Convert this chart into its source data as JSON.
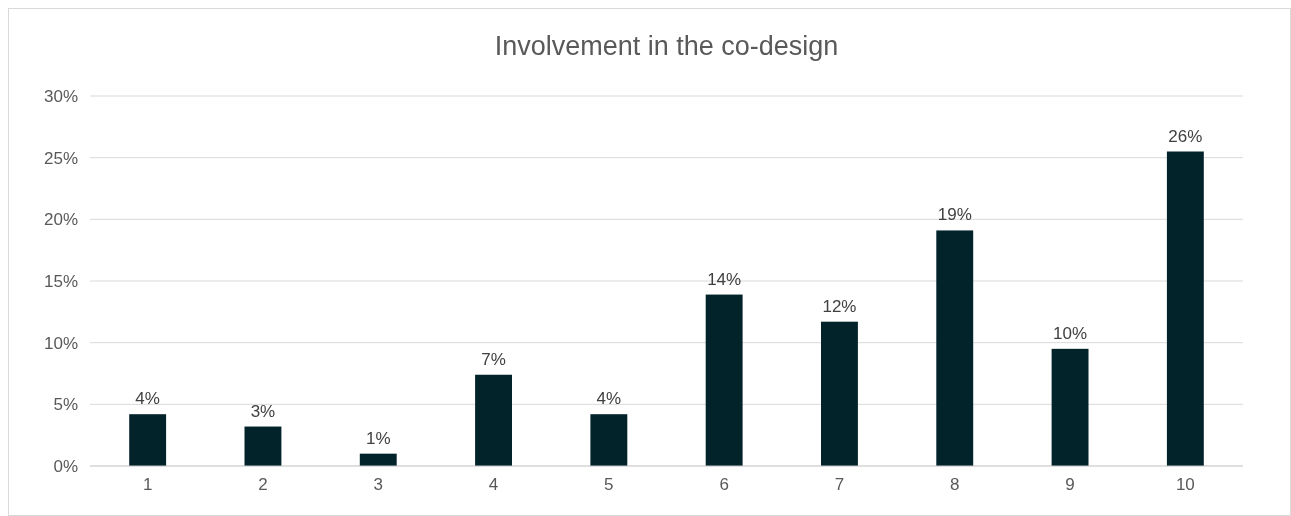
{
  "chart_data": {
    "type": "bar",
    "title": "Involvement in the co-design",
    "categories": [
      "1",
      "2",
      "3",
      "4",
      "5",
      "6",
      "7",
      "8",
      "9",
      "10"
    ],
    "values": [
      4.2,
      3.2,
      1.0,
      7.4,
      4.2,
      13.9,
      11.7,
      19.1,
      9.5,
      25.5
    ],
    "value_labels": [
      "4%",
      "3%",
      "1%",
      "7%",
      "4%",
      "14%",
      "12%",
      "19%",
      "10%",
      "26%"
    ],
    "color": "#03232b",
    "ylim": [
      0,
      30
    ],
    "yticks": [
      {
        "value": 0,
        "label": "0%"
      },
      {
        "value": 5,
        "label": "5%"
      },
      {
        "value": 10,
        "label": "10%"
      },
      {
        "value": 15,
        "label": "15%"
      },
      {
        "value": 20,
        "label": "20%"
      },
      {
        "value": 25,
        "label": "25%"
      },
      {
        "value": 30,
        "label": "30%"
      }
    ],
    "grid": "y"
  }
}
